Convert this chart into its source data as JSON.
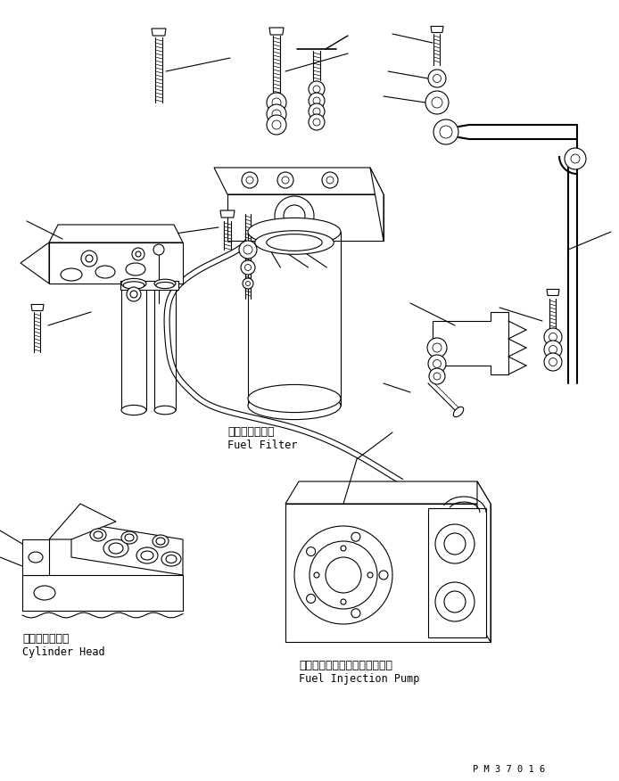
{
  "background_color": "#ffffff",
  "line_color": "#000000",
  "fig_width": 6.94,
  "fig_height": 8.76,
  "dpi": 100,
  "labels": {
    "fuel_filter_jp": "フェルフィルタ",
    "fuel_filter_en": "Fuel Filter",
    "cylinder_head_jp": "シリンダヘッド",
    "cylinder_head_en": "Cylinder Head",
    "fuel_pump_jp": "フェルインジェクションポンプ",
    "fuel_pump_en": "Fuel Injection Pump",
    "part_number": "P M 3 7 0 1 6"
  }
}
